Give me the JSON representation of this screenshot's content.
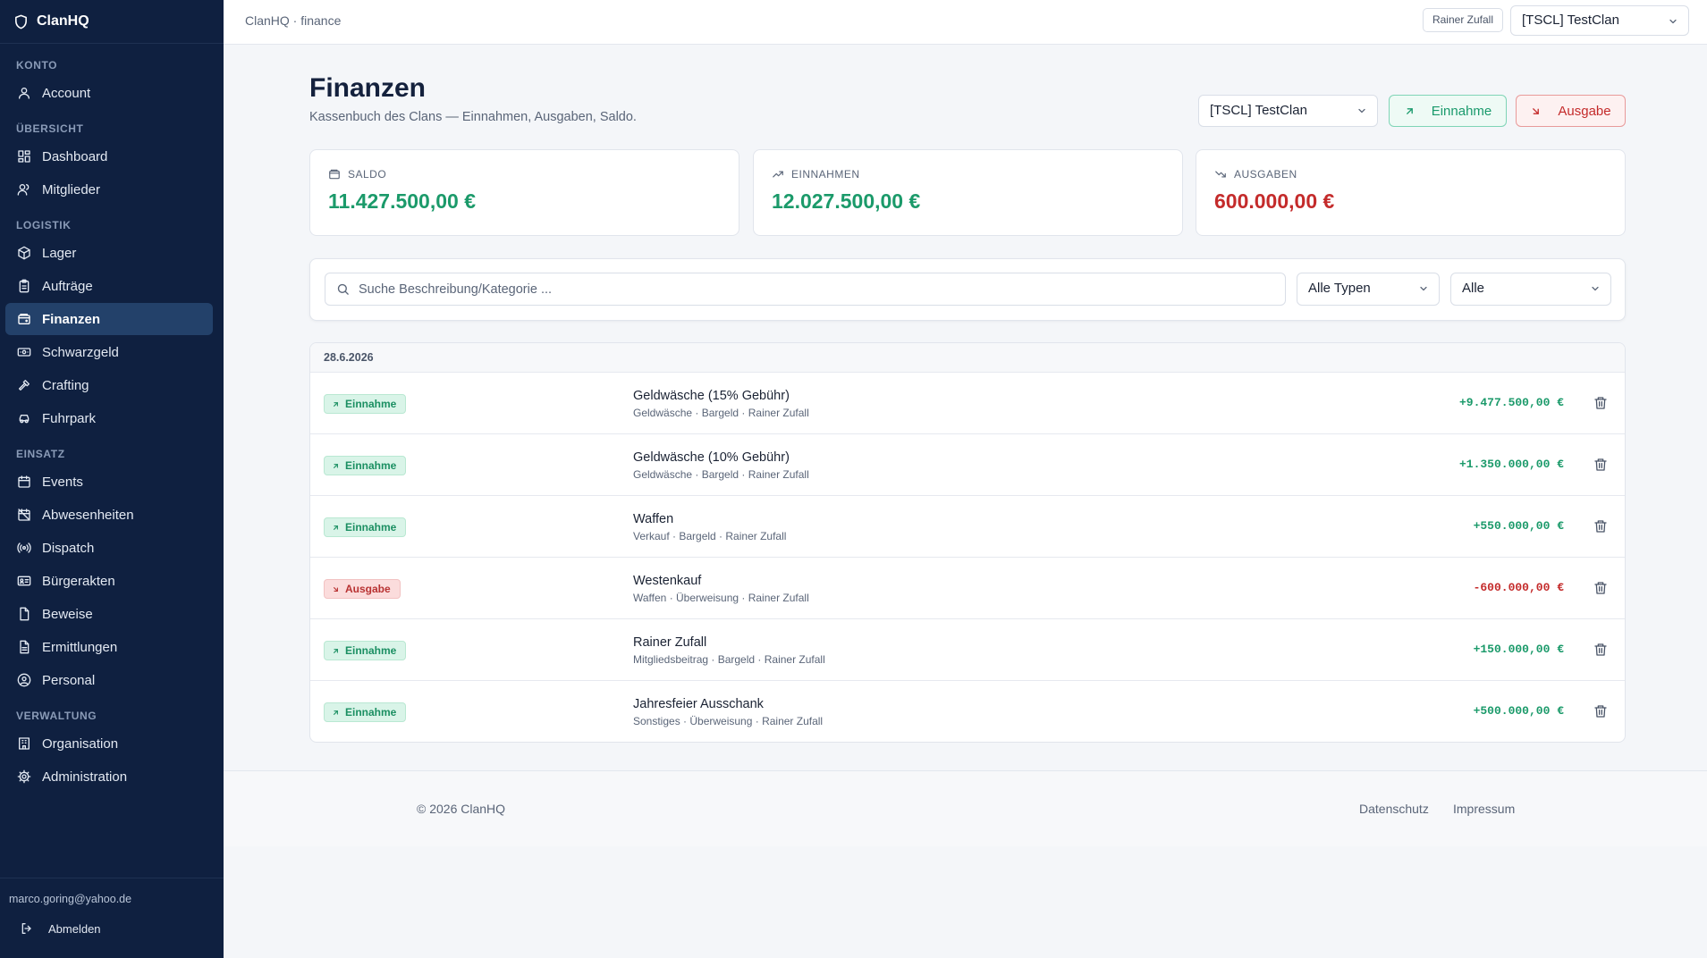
{
  "sidebar": {
    "brand": "ClanHQ",
    "sections": [
      {
        "title": "KONTO",
        "items": [
          {
            "label": "Account",
            "icon": "user-icon"
          }
        ]
      },
      {
        "title": "ÜBERSICHT",
        "items": [
          {
            "label": "Dashboard",
            "icon": "grid-icon"
          },
          {
            "label": "Mitglieder",
            "icon": "users-icon"
          }
        ]
      },
      {
        "title": "LOGISTIK",
        "items": [
          {
            "label": "Lager",
            "icon": "package-icon"
          },
          {
            "label": "Aufträge",
            "icon": "clipboard-icon"
          },
          {
            "label": "Finanzen",
            "icon": "wallet-icon"
          },
          {
            "label": "Schwarzgeld",
            "icon": "banknote-icon"
          },
          {
            "label": "Crafting",
            "icon": "hammer-icon"
          },
          {
            "label": "Fuhrpark",
            "icon": "car-icon"
          }
        ]
      },
      {
        "title": "EINSATZ",
        "items": [
          {
            "label": "Events",
            "icon": "calendar-icon"
          },
          {
            "label": "Abwesenheiten",
            "icon": "calendar-off-icon"
          },
          {
            "label": "Dispatch",
            "icon": "radio-icon"
          },
          {
            "label": "Bürgerakten",
            "icon": "id-card-icon"
          },
          {
            "label": "Beweise",
            "icon": "file-icon"
          },
          {
            "label": "Ermittlungen",
            "icon": "file-text-icon"
          },
          {
            "label": "Personal",
            "icon": "user-circle-icon"
          }
        ]
      },
      {
        "title": "VERWALTUNG",
        "items": [
          {
            "label": "Organisation",
            "icon": "building-icon"
          },
          {
            "label": "Administration",
            "icon": "gear-icon"
          }
        ]
      }
    ],
    "active": "Finanzen",
    "user_email": "marco.goring@yahoo.de",
    "logout_label": "Abmelden"
  },
  "topbar": {
    "breadcrumb": "ClanHQ · finance",
    "user_chip": "Rainer Zufall",
    "clan_select": "[TSCL] TestClan"
  },
  "page": {
    "title": "Finanzen",
    "subtitle": "Kassenbuch des Clans — Einnahmen, Ausgaben, Saldo.",
    "clan_select": "[TSCL] TestClan",
    "income_button": "Einnahme",
    "expense_button": "Ausgabe"
  },
  "stats": {
    "saldo": {
      "label": "SALDO",
      "value": "11.427.500,00 €"
    },
    "einnahmen": {
      "label": "EINNAHMEN",
      "value": "12.027.500,00 €"
    },
    "ausgaben": {
      "label": "AUSGABEN",
      "value": "600.000,00 €"
    }
  },
  "colors": {
    "income": "#1b9a6a",
    "expense": "#c42b2b",
    "sidebar": "#0f2040"
  },
  "filters": {
    "search_placeholder": "Suche Beschreibung/Kategorie ...",
    "type_select": "Alle Typen",
    "range_select": "Alle"
  },
  "ledger": {
    "date": "28.6.2026",
    "rows": [
      {
        "type": "Einnahme",
        "kind": "in",
        "description": "Geldwäsche (15% Gebühr)",
        "meta": "Geldwäsche · Bargeld · Rainer Zufall",
        "amount": "+9.477.500,00 €"
      },
      {
        "type": "Einnahme",
        "kind": "in",
        "description": "Geldwäsche (10% Gebühr)",
        "meta": "Geldwäsche · Bargeld · Rainer Zufall",
        "amount": "+1.350.000,00 €"
      },
      {
        "type": "Einnahme",
        "kind": "in",
        "description": "Waffen",
        "meta": "Verkauf · Bargeld · Rainer Zufall",
        "amount": "+550.000,00 €"
      },
      {
        "type": "Ausgabe",
        "kind": "out",
        "description": "Westenkauf",
        "meta": "Waffen · Überweisung · Rainer Zufall",
        "amount": "-600.000,00 €"
      },
      {
        "type": "Einnahme",
        "kind": "in",
        "description": "Rainer Zufall",
        "meta": "Mitgliedsbeitrag · Bargeld · Rainer Zufall",
        "amount": "+150.000,00 €"
      },
      {
        "type": "Einnahme",
        "kind": "in",
        "description": "Jahresfeier Ausschank",
        "meta": "Sonstiges · Überweisung · Rainer Zufall",
        "amount": "+500.000,00 €"
      }
    ]
  },
  "footer": {
    "copyright": "© 2026 ClanHQ",
    "privacy": "Datenschutz",
    "imprint": "Impressum"
  }
}
